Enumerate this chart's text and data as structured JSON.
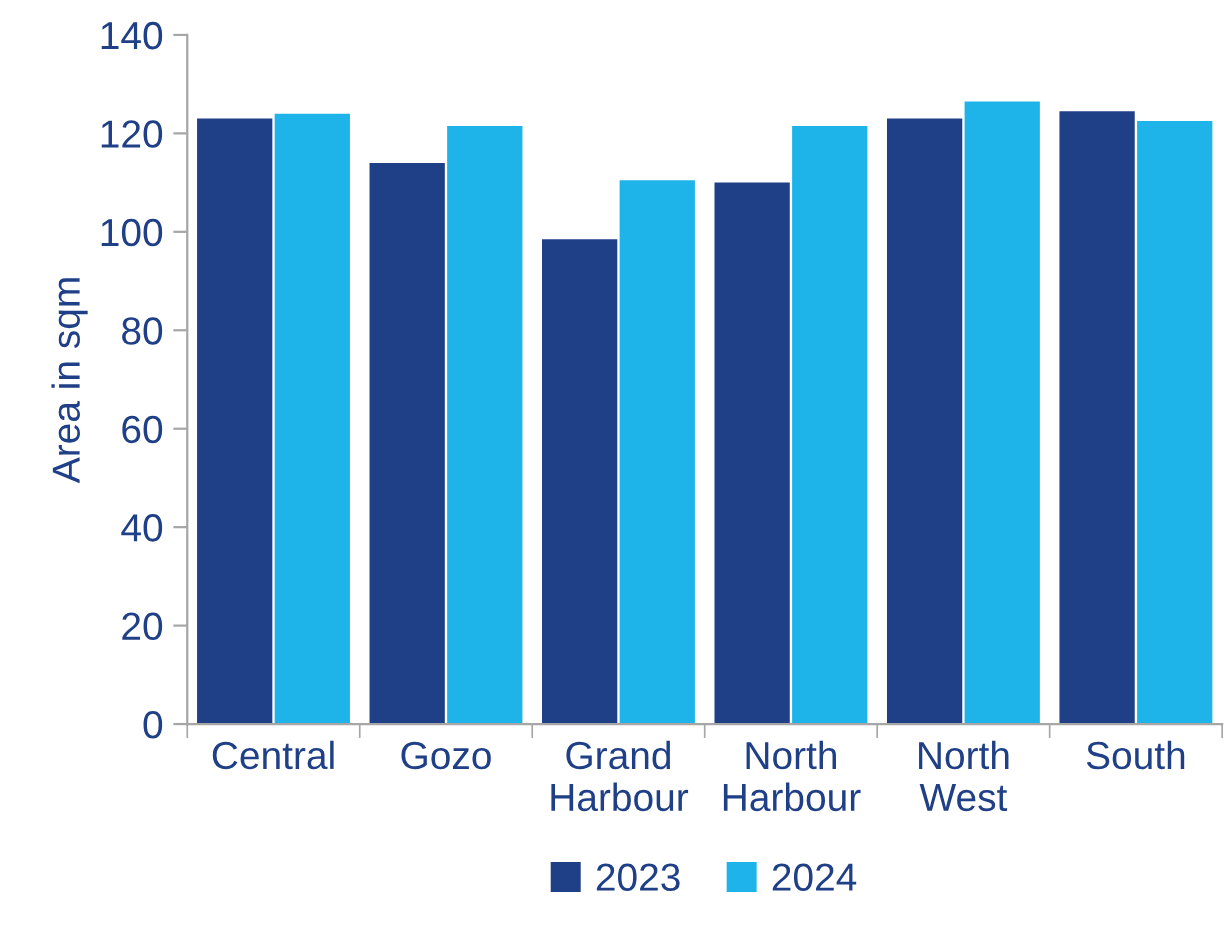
{
  "chart_data": {
    "type": "bar",
    "ylabel": "Area in sqm",
    "categories": [
      "Central",
      "Gozo",
      "Grand Harbour",
      "North Harbour",
      "North West",
      "South"
    ],
    "series": [
      {
        "name": "2023",
        "color": "#1f3f87",
        "values": [
          123,
          114,
          98.5,
          110,
          123,
          124.5
        ]
      },
      {
        "name": "2024",
        "color": "#1fb4e9",
        "values": [
          124,
          121.5,
          110.5,
          121.5,
          126.5,
          122.5
        ]
      }
    ],
    "ylim": [
      0,
      140
    ],
    "yticks": [
      0,
      20,
      40,
      60,
      80,
      100,
      120,
      140
    ],
    "grid": false,
    "legend": "bottom"
  }
}
